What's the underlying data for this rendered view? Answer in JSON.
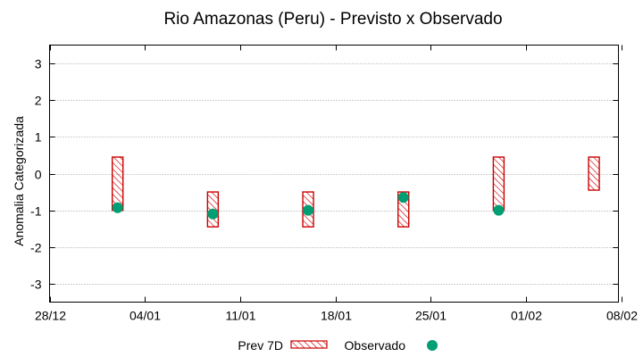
{
  "chart_data": {
    "type": "range-bar-with-points",
    "title": "Rio Amazonas (Peru) - Previsto x Observado",
    "xlabel": "",
    "ylabel": "Anomalia Categorizada",
    "ylim": [
      -3.5,
      3.5
    ],
    "yticks": [
      3,
      2,
      1,
      0,
      -1,
      -2,
      -3
    ],
    "xlim": [
      0,
      41
    ],
    "xticks": [
      {
        "day": 0,
        "label": "28/12"
      },
      {
        "day": 7,
        "label": "04/01"
      },
      {
        "day": 14,
        "label": "11/01"
      },
      {
        "day": 21,
        "label": "18/01"
      },
      {
        "day": 28,
        "label": "25/01"
      },
      {
        "day": 35,
        "label": "01/02"
      },
      {
        "day": 42,
        "label": "08/02"
      }
    ],
    "grid": true,
    "legend_position": "bottom",
    "series": [
      {
        "name": "Prev 7D",
        "style": "hatched-range",
        "color": "#cc0000",
        "ranges": [
          {
            "day": 5,
            "low": -1.0,
            "high": 0.45
          },
          {
            "day": 12,
            "low": -1.45,
            "high": -0.5
          },
          {
            "day": 19,
            "low": -1.45,
            "high": -0.5
          },
          {
            "day": 26,
            "low": -1.45,
            "high": -0.5
          },
          {
            "day": 33,
            "low": -1.0,
            "high": 0.45
          },
          {
            "day": 40,
            "low": -0.45,
            "high": 0.45
          }
        ]
      },
      {
        "name": "Observado",
        "style": "point",
        "color": "#009e73",
        "points": [
          {
            "day": 5,
            "value": -0.93
          },
          {
            "day": 12,
            "value": -1.1
          },
          {
            "day": 19,
            "value": -1.0
          },
          {
            "day": 26,
            "value": -0.65
          },
          {
            "day": 33,
            "value": -1.0
          }
        ]
      }
    ]
  }
}
